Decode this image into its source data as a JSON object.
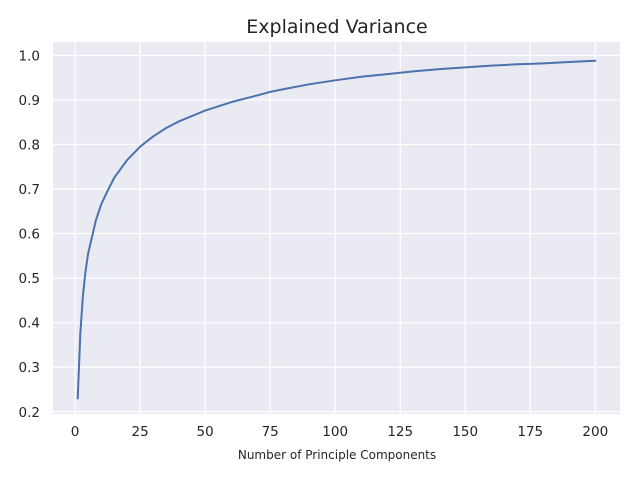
{
  "chart_data": {
    "type": "line",
    "title": "Explained Variance",
    "xlabel": "Number of Principle Components",
    "ylabel": "",
    "xlim": [
      -8.5,
      209.5
    ],
    "ylim": [
      0.195,
      1.03
    ],
    "xticks": [
      0,
      25,
      50,
      75,
      100,
      125,
      150,
      175,
      200
    ],
    "yticks": [
      0.2,
      0.3,
      0.4,
      0.5,
      0.6,
      0.7,
      0.8,
      0.9,
      1.0
    ],
    "ytick_labels": [
      "0.2",
      "0.3",
      "0.4",
      "0.5",
      "0.6",
      "0.7",
      "0.8",
      "0.9",
      "1.0"
    ],
    "grid": true,
    "legend": "none",
    "colors": {
      "background": "#eaeaf2",
      "grid": "#ffffff",
      "line": "#4c72b0"
    },
    "series": [
      {
        "x": [
          1,
          2,
          3,
          4,
          5,
          6,
          8,
          10,
          12,
          15,
          20,
          25,
          30,
          35,
          40,
          50,
          60,
          70,
          75,
          80,
          90,
          100,
          110,
          120,
          125,
          130,
          140,
          150,
          160,
          170,
          175,
          180,
          190,
          200
        ],
        "y": [
          0.23,
          0.375,
          0.46,
          0.515,
          0.555,
          0.58,
          0.63,
          0.665,
          0.69,
          0.725,
          0.765,
          0.795,
          0.818,
          0.837,
          0.852,
          0.876,
          0.895,
          0.91,
          0.918,
          0.924,
          0.935,
          0.944,
          0.952,
          0.958,
          0.961,
          0.964,
          0.969,
          0.973,
          0.977,
          0.98,
          0.981,
          0.982,
          0.985,
          0.988
        ]
      }
    ]
  }
}
